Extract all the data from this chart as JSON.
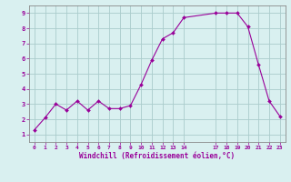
{
  "x": [
    0,
    1,
    2,
    3,
    4,
    5,
    6,
    7,
    8,
    9,
    10,
    11,
    12,
    13,
    14,
    17,
    18,
    19,
    20,
    21,
    22,
    23
  ],
  "y": [
    1.3,
    2.1,
    3.0,
    2.6,
    3.2,
    2.6,
    3.2,
    2.7,
    2.7,
    2.9,
    4.3,
    5.9,
    7.3,
    7.7,
    8.7,
    9.0,
    9.0,
    9.0,
    8.1,
    5.6,
    3.2,
    2.2
  ],
  "line_color": "#990099",
  "marker": "D",
  "marker_size": 2.0,
  "bg_color": "#d9f0f0",
  "grid_color": "#aacccc",
  "xlabel": "Windchill (Refroidissement éolien,°C)",
  "xlim": [
    -0.5,
    23.5
  ],
  "ylim": [
    0.5,
    9.5
  ],
  "xticks": [
    0,
    1,
    2,
    3,
    4,
    5,
    6,
    7,
    8,
    9,
    10,
    11,
    12,
    13,
    14,
    17,
    18,
    19,
    20,
    21,
    22,
    23
  ],
  "yticks": [
    1,
    2,
    3,
    4,
    5,
    6,
    7,
    8,
    9
  ],
  "xlabel_color": "#990099",
  "tick_color": "#990099",
  "spine_color": "#888888"
}
